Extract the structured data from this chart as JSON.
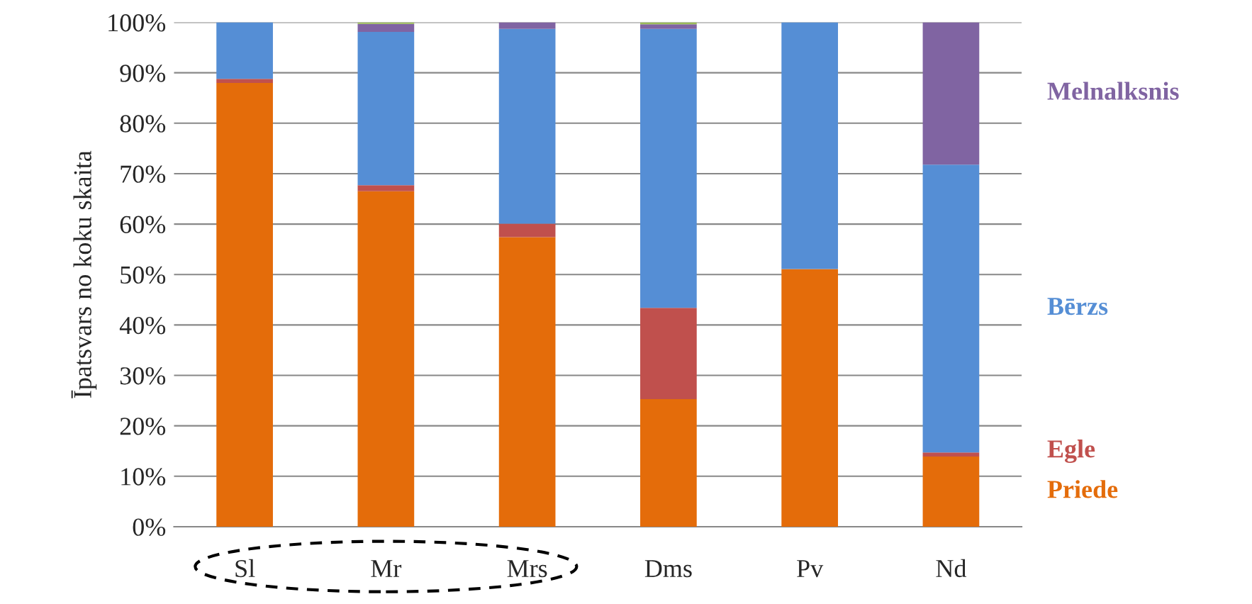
{
  "chart_data": {
    "type": "bar",
    "stacked": true,
    "ylabel": "Īpatsvars no koku skaita",
    "categories": [
      "Sl",
      "Mr",
      "Mrs",
      "Dms",
      "Pv",
      "Nd"
    ],
    "series": [
      {
        "name": "Priede",
        "color": "#e46c0a",
        "values": [
          88.0,
          66.5,
          57.4,
          25.3,
          51.1,
          13.9
        ]
      },
      {
        "name": "Egle",
        "color": "#c0504d",
        "values": [
          0.8,
          1.2,
          2.7,
          18.1,
          null,
          0.8
        ]
      },
      {
        "name": "Bērzs",
        "color": "#558ed5",
        "values": [
          11.2,
          30.4,
          38.6,
          55.3,
          48.9,
          57.1
        ]
      },
      {
        "name": "Melnalksnis",
        "color": "#8064a2",
        "values": [
          null,
          1.6,
          1.3,
          0.9,
          null,
          28.2
        ]
      },
      {
        "color": "#9bbb59",
        "values": [
          null,
          0.3,
          null,
          0.4,
          null,
          null
        ]
      }
    ],
    "ylim": [
      0,
      100
    ],
    "yticks": [
      {
        "value": 0,
        "label": "0%"
      },
      {
        "value": 10,
        "label": "10%"
      },
      {
        "value": 20,
        "label": "20%"
      },
      {
        "value": 30,
        "label": "30%"
      },
      {
        "value": 40,
        "label": "40%"
      },
      {
        "value": 50,
        "label": "50%"
      },
      {
        "value": 60,
        "label": "60%"
      },
      {
        "value": 70,
        "label": "70%"
      },
      {
        "value": 80,
        "label": "80%"
      },
      {
        "value": 90,
        "label": "90%"
      },
      {
        "value": 100,
        "label": "100%"
      }
    ],
    "grid": "y",
    "legend": false
  }
}
